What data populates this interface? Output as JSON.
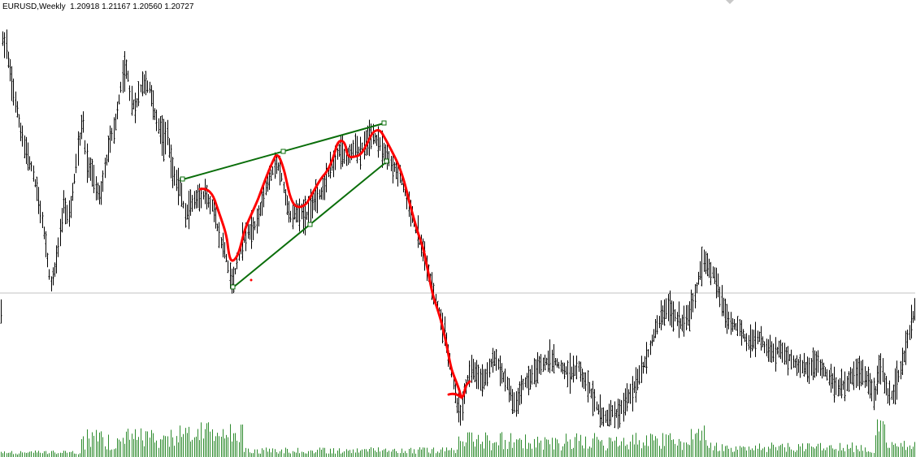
{
  "header": {
    "symbol_timeframe": "EURUSD,Weekly",
    "ohlc": [
      "1.20918",
      "1.21167",
      "1.20560",
      "1.20727"
    ]
  },
  "colors": {
    "background": "#ffffff",
    "bars": "#000000",
    "volume": "#2e8b2e",
    "trendlines": "#0a6e0a",
    "drawing": "#ff0000",
    "price_line": "#c0c0c0"
  },
  "chart_data": [
    {
      "type": "ohlc_bars",
      "timeframe": "Weekly",
      "symbol": "EURUSD",
      "last_bar": {
        "open": 1.20918,
        "high": 1.21167,
        "low": 1.2056,
        "close": 1.20727
      },
      "price_line": 1.20727,
      "grid": false
    },
    {
      "type": "bar",
      "role": "volume"
    }
  ]
}
